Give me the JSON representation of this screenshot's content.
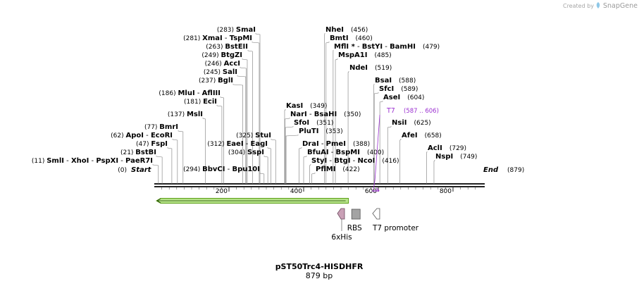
{
  "credit": "Created by",
  "brand": "SnapGene",
  "title": "pST50Trc4-HISDHFR",
  "length_label": "879 bp",
  "start_label": "Start",
  "start_pos": "(0)",
  "end_label": "End",
  "end_pos": "(879)",
  "seq_length": 879,
  "ruler_ticks": [
    {
      "bp": 200,
      "label": "200"
    },
    {
      "bp": 400,
      "label": "400"
    },
    {
      "bp": 600,
      "label": "600"
    },
    {
      "bp": 800,
      "label": "800"
    }
  ],
  "sites": [
    {
      "pos": "(11)",
      "bp": 11,
      "names": [
        "SmlI",
        "XhoI",
        "PspXI",
        "PaeR7I"
      ]
    },
    {
      "pos": "(21)",
      "bp": 21,
      "names": [
        "BstBI"
      ]
    },
    {
      "pos": "(47)",
      "bp": 47,
      "names": [
        "FspI"
      ]
    },
    {
      "pos": "(62)",
      "bp": 62,
      "names": [
        "ApoI",
        "EcoRI"
      ]
    },
    {
      "pos": "(77)",
      "bp": 77,
      "names": [
        "BmrI"
      ]
    },
    {
      "pos": "(137)",
      "bp": 137,
      "names": [
        "MslI"
      ]
    },
    {
      "pos": "(181)",
      "bp": 181,
      "names": [
        "EciI"
      ]
    },
    {
      "pos": "(186)",
      "bp": 186,
      "names": [
        "MluI",
        "AflIII"
      ]
    },
    {
      "pos": "(237)",
      "bp": 237,
      "names": [
        "BglI"
      ]
    },
    {
      "pos": "(245)",
      "bp": 245,
      "names": [
        "SalI"
      ]
    },
    {
      "pos": "(246)",
      "bp": 246,
      "names": [
        "AccI"
      ]
    },
    {
      "pos": "(249)",
      "bp": 249,
      "names": [
        "BtgZI"
      ]
    },
    {
      "pos": "(263)",
      "bp": 263,
      "names": [
        "BstEII"
      ]
    },
    {
      "pos": "(281)",
      "bp": 281,
      "names": [
        "XmaI",
        "TspMI"
      ]
    },
    {
      "pos": "(283)",
      "bp": 283,
      "names": [
        "SmaI"
      ]
    },
    {
      "pos": "(294)",
      "bp": 294,
      "names": [
        "BbvCI",
        "Bpu10I"
      ]
    },
    {
      "pos": "(304)",
      "bp": 304,
      "names": [
        "SspI"
      ]
    },
    {
      "pos": "(312)",
      "bp": 312,
      "names": [
        "EaeI",
        "EagI"
      ]
    },
    {
      "pos": "(325)",
      "bp": 325,
      "names": [
        "StuI"
      ]
    },
    {
      "pos": "(349)",
      "bp": 349,
      "names": [
        "KasI"
      ]
    },
    {
      "pos": "(350)",
      "bp": 350,
      "names": [
        "NarI",
        "BsaHI"
      ]
    },
    {
      "pos": "(351)",
      "bp": 351,
      "names": [
        "SfoI"
      ]
    },
    {
      "pos": "(353)",
      "bp": 353,
      "names": [
        "PluTI"
      ]
    },
    {
      "pos": "(388)",
      "bp": 388,
      "names": [
        "DraI",
        "PmeI"
      ]
    },
    {
      "pos": "(400)",
      "bp": 400,
      "names": [
        "BfuAI",
        "BspMI"
      ]
    },
    {
      "pos": "(416)",
      "bp": 416,
      "names": [
        "StyI",
        "BtgI",
        "NcoI"
      ]
    },
    {
      "pos": "(422)",
      "bp": 422,
      "names": [
        "PflMI"
      ]
    },
    {
      "pos": "(456)",
      "bp": 456,
      "names": [
        "NheI"
      ]
    },
    {
      "pos": "(460)",
      "bp": 460,
      "names": [
        "BmtI"
      ]
    },
    {
      "pos": "(479)",
      "bp": 479,
      "names": [
        "MflI *",
        "BstYI",
        "BamHI"
      ]
    },
    {
      "pos": "(485)",
      "bp": 485,
      "names": [
        "MspA1I"
      ]
    },
    {
      "pos": "(519)",
      "bp": 519,
      "names": [
        "NdeI"
      ]
    },
    {
      "pos": "(588)",
      "bp": 588,
      "names": [
        "BsaI"
      ]
    },
    {
      "pos": "(589)",
      "bp": 589,
      "names": [
        "SfcI"
      ]
    },
    {
      "pos": "(604)",
      "bp": 604,
      "names": [
        "AseI"
      ]
    },
    {
      "pos": "(625)",
      "bp": 625,
      "names": [
        "NsiI"
      ]
    },
    {
      "pos": "(658)",
      "bp": 658,
      "names": [
        "AfeI"
      ]
    },
    {
      "pos": "(729)",
      "bp": 729,
      "names": [
        "AclI"
      ]
    },
    {
      "pos": "(749)",
      "bp": 749,
      "names": [
        "NspI"
      ]
    }
  ],
  "primer": {
    "name": "T7",
    "range": "(587 .. 606)",
    "start_bp": 587,
    "end_bp": 606,
    "color": "#9b30d0"
  },
  "orf": {
    "start_bp": 0,
    "end_bp": 520,
    "direction": "reverse",
    "fill": "#b7e38a",
    "stroke": "#5da017"
  },
  "features": [
    {
      "label": "6xHis",
      "type": "cds",
      "direction": "reverse",
      "bp": 500,
      "fill": "#c9a0b6"
    },
    {
      "label": "RBS",
      "type": "rbs",
      "direction": "none",
      "bp": 540,
      "fill": "#a3a3a3"
    },
    {
      "label": "T7 promoter",
      "type": "promoter",
      "direction": "reverse",
      "bp": 598,
      "fill": "#ffffff"
    }
  ],
  "colors": {
    "backbone": "#222222",
    "leader": "#7a7a7a",
    "primer": "#9b30d0"
  }
}
